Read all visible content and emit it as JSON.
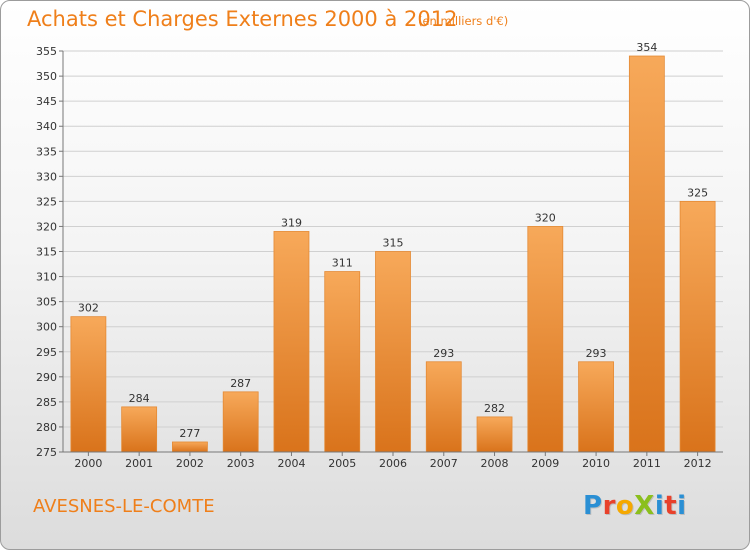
{
  "title": "Achats et Charges Externes 2000 à 2012",
  "subtitle": "(en milliers d'€)",
  "place": "AVESNES-LE-COMTE",
  "logo_text": "ProXiti",
  "colors": {
    "accent": "#ef7f1a",
    "bar_top": "#f7a95a",
    "bar_bottom": "#d9731b",
    "grid": "#d0d0d0"
  },
  "chart_data": {
    "type": "bar",
    "title": "Achats et Charges Externes 2000 à 2012",
    "subtitle": "(en milliers d'€)",
    "categories": [
      "2000",
      "2001",
      "2002",
      "2003",
      "2004",
      "2005",
      "2006",
      "2007",
      "2008",
      "2009",
      "2010",
      "2011",
      "2012"
    ],
    "values": [
      302,
      284,
      277,
      287,
      319,
      311,
      315,
      293,
      282,
      320,
      293,
      354,
      325
    ],
    "ylim": [
      275,
      355
    ],
    "yticks": [
      275,
      280,
      285,
      290,
      295,
      300,
      305,
      310,
      315,
      320,
      325,
      330,
      335,
      340,
      345,
      350,
      355
    ],
    "grid": true,
    "data_labels": true
  }
}
